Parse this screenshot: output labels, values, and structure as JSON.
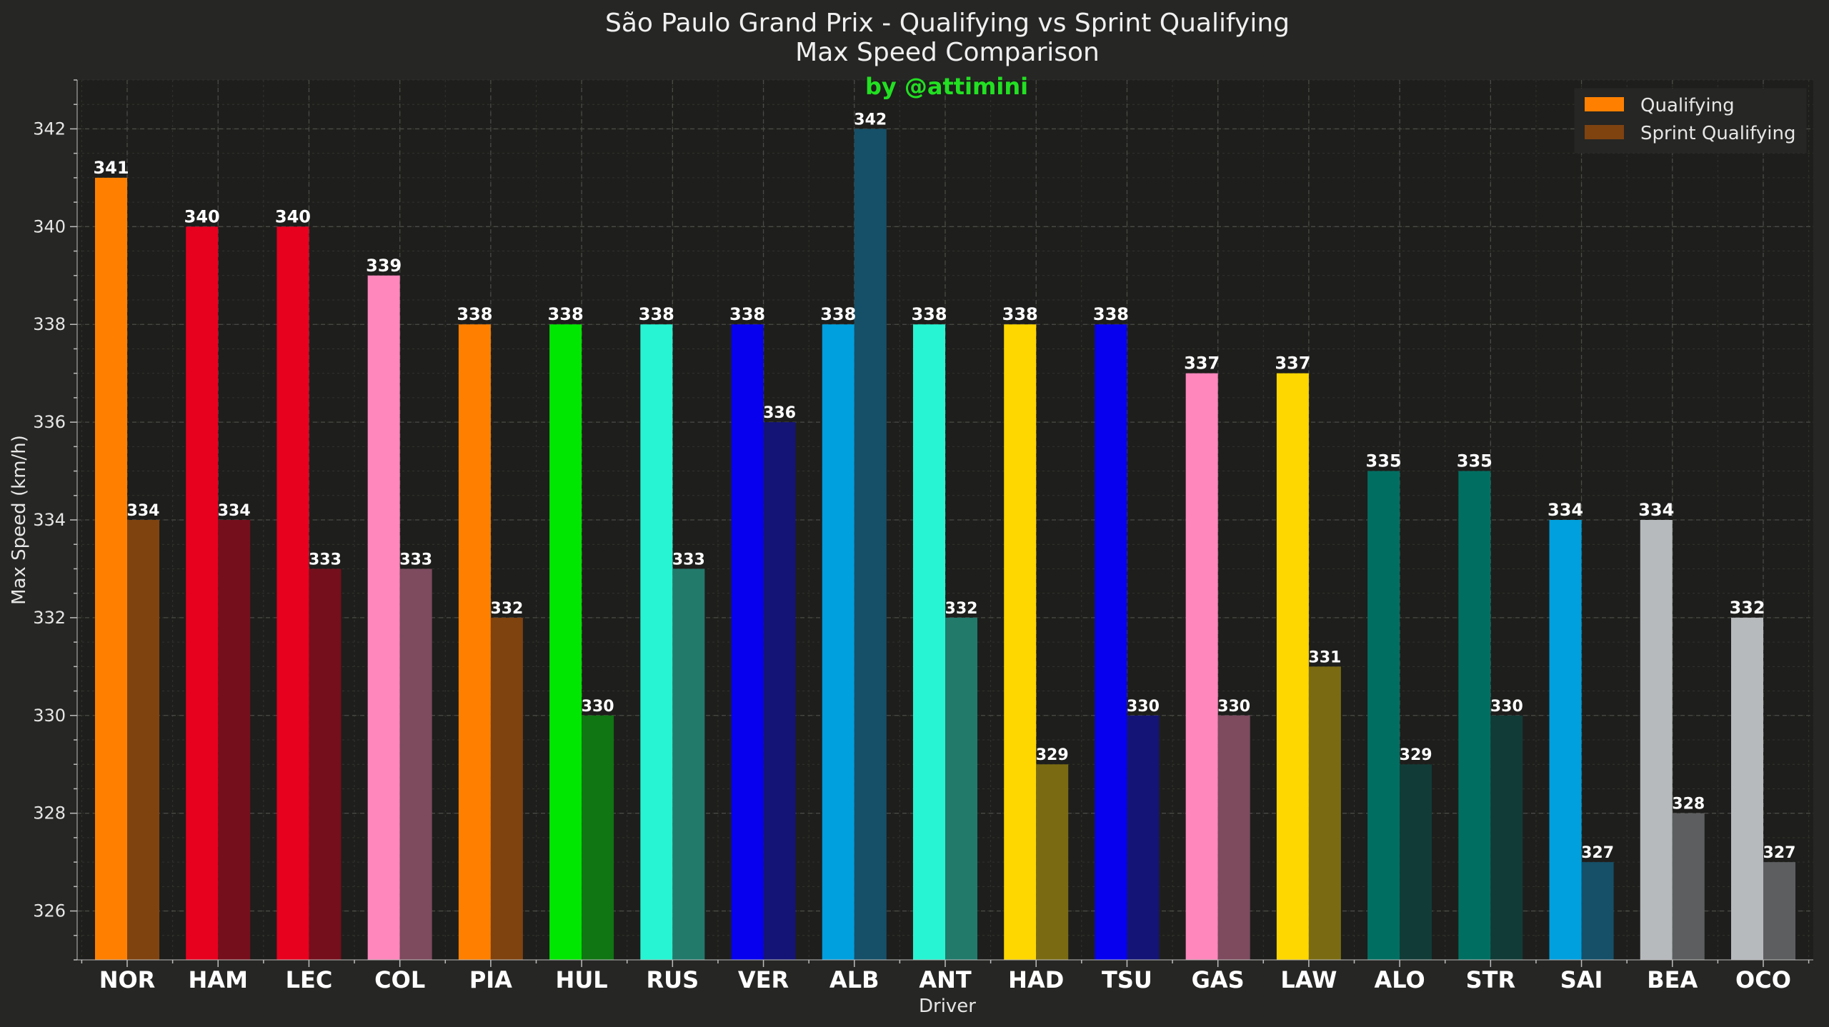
{
  "chart_data": {
    "type": "bar",
    "title": "São Paulo Grand Prix - Qualifying vs Sprint Qualifying",
    "subtitle": "Max Speed Comparison",
    "credit": "by @attimini",
    "xlabel": "Driver",
    "ylabel": "Max Speed (km/h)",
    "ylim": [
      325,
      343
    ],
    "yticks": [
      326,
      328,
      330,
      332,
      334,
      336,
      338,
      340,
      342
    ],
    "grid": true,
    "legend_position": "top-right",
    "categories": [
      "NOR",
      "HAM",
      "LEC",
      "COL",
      "PIA",
      "HUL",
      "RUS",
      "VER",
      "ALB",
      "ANT",
      "HAD",
      "TSU",
      "GAS",
      "LAW",
      "ALO",
      "STR",
      "SAI",
      "BEA",
      "OCO"
    ],
    "series": [
      {
        "name": "Qualifying",
        "legend_color": "#ff8000",
        "values": [
          341,
          340,
          340,
          339,
          338,
          338,
          338,
          338,
          338,
          338,
          338,
          338,
          337,
          337,
          335,
          335,
          334,
          334,
          332
        ],
        "colors": [
          "#ff8000",
          "#e8001f",
          "#e8001f",
          "#ff87bc",
          "#ff8000",
          "#00e701",
          "#27f4d2",
          "#0600ef",
          "#00a0de",
          "#27f4d2",
          "#ffd700",
          "#0600ef",
          "#ff87bc",
          "#ffd700",
          "#006f62",
          "#006f62",
          "#00a0de",
          "#b6babd",
          "#b6babd"
        ]
      },
      {
        "name": "Sprint Qualifying",
        "legend_color": "#7f4310",
        "values": [
          334,
          334,
          333,
          333,
          332,
          330,
          333,
          336,
          342,
          332,
          329,
          330,
          330,
          331,
          329,
          330,
          327,
          328,
          327
        ],
        "colors": [
          "#7f4310",
          "#750f1c",
          "#750f1c",
          "#7d4a5e",
          "#7f4310",
          "#107513",
          "#227a6b",
          "#141476",
          "#155068",
          "#227a6b",
          "#7a6b13",
          "#141476",
          "#7d4a5e",
          "#7a6b13",
          "#113b36",
          "#113b36",
          "#155068",
          "#5c5e5f",
          "#5c5e5f"
        ]
      }
    ]
  },
  "colors": {
    "page_background": "#262624",
    "plot_background": "#1e1e1c",
    "grid_major": "#4a4a46",
    "grid_minor": "#33332f",
    "axis": "#bdbdbd"
  }
}
